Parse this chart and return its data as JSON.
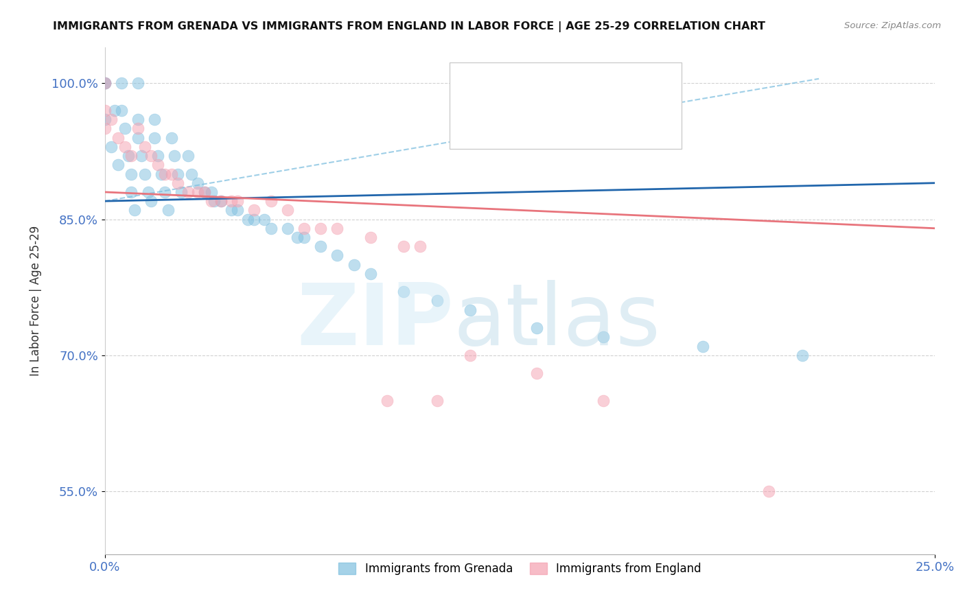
{
  "title": "IMMIGRANTS FROM GRENADA VS IMMIGRANTS FROM ENGLAND IN LABOR FORCE | AGE 25-29 CORRELATION CHART",
  "source": "Source: ZipAtlas.com",
  "ylabel": "In Labor Force | Age 25-29",
  "xlim": [
    0.0,
    0.25
  ],
  "ylim": [
    0.48,
    1.04
  ],
  "yticks": [
    0.55,
    0.7,
    0.85,
    1.0
  ],
  "ytick_labels": [
    "55.0%",
    "70.0%",
    "85.0%",
    "100.0%"
  ],
  "xtick_labels": [
    "0.0%",
    "25.0%"
  ],
  "xticks": [
    0.0,
    0.25
  ],
  "grenada_color": "#7fbfdf",
  "england_color": "#f4a0b0",
  "blue_line_color": "#2166ac",
  "pink_line_color": "#e8747c",
  "dashed_line_color": "#7fbfdf",
  "background_color": "#ffffff",
  "grid_color": "#cccccc",
  "grenada_x": [
    0.0,
    0.0,
    0.0,
    0.002,
    0.003,
    0.004,
    0.005,
    0.005,
    0.006,
    0.007,
    0.008,
    0.008,
    0.009,
    0.01,
    0.01,
    0.01,
    0.011,
    0.012,
    0.013,
    0.014,
    0.015,
    0.015,
    0.016,
    0.017,
    0.018,
    0.019,
    0.02,
    0.021,
    0.022,
    0.023,
    0.025,
    0.026,
    0.028,
    0.03,
    0.032,
    0.033,
    0.035,
    0.038,
    0.04,
    0.043,
    0.045,
    0.048,
    0.05,
    0.055,
    0.058,
    0.06,
    0.065,
    0.07,
    0.075,
    0.08,
    0.09,
    0.1,
    0.11,
    0.13,
    0.15,
    0.18,
    0.21
  ],
  "grenada_y": [
    1.0,
    1.0,
    0.96,
    0.93,
    0.97,
    0.91,
    1.0,
    0.97,
    0.95,
    0.92,
    0.9,
    0.88,
    0.86,
    1.0,
    0.96,
    0.94,
    0.92,
    0.9,
    0.88,
    0.87,
    0.96,
    0.94,
    0.92,
    0.9,
    0.88,
    0.86,
    0.94,
    0.92,
    0.9,
    0.88,
    0.92,
    0.9,
    0.89,
    0.88,
    0.88,
    0.87,
    0.87,
    0.86,
    0.86,
    0.85,
    0.85,
    0.85,
    0.84,
    0.84,
    0.83,
    0.83,
    0.82,
    0.81,
    0.8,
    0.79,
    0.77,
    0.76,
    0.75,
    0.73,
    0.72,
    0.71,
    0.7
  ],
  "england_x": [
    0.0,
    0.0,
    0.0,
    0.002,
    0.004,
    0.006,
    0.008,
    0.01,
    0.012,
    0.014,
    0.016,
    0.018,
    0.02,
    0.022,
    0.025,
    0.028,
    0.03,
    0.032,
    0.035,
    0.038,
    0.04,
    0.045,
    0.05,
    0.055,
    0.06,
    0.065,
    0.07,
    0.08,
    0.085,
    0.09,
    0.095,
    0.1,
    0.11,
    0.13,
    0.15,
    0.2
  ],
  "england_y": [
    1.0,
    0.97,
    0.95,
    0.96,
    0.94,
    0.93,
    0.92,
    0.95,
    0.93,
    0.92,
    0.91,
    0.9,
    0.9,
    0.89,
    0.88,
    0.88,
    0.88,
    0.87,
    0.87,
    0.87,
    0.87,
    0.86,
    0.87,
    0.86,
    0.84,
    0.84,
    0.84,
    0.83,
    0.65,
    0.82,
    0.82,
    0.65,
    0.7,
    0.68,
    0.65,
    0.55
  ],
  "blue_line_x": [
    0.0,
    0.25
  ],
  "blue_line_y": [
    0.87,
    0.89
  ],
  "pink_line_x": [
    0.0,
    0.25
  ],
  "pink_line_y": [
    0.88,
    0.84
  ],
  "dashed_line_x": [
    0.0,
    0.215
  ],
  "dashed_line_y": [
    0.87,
    1.005
  ]
}
